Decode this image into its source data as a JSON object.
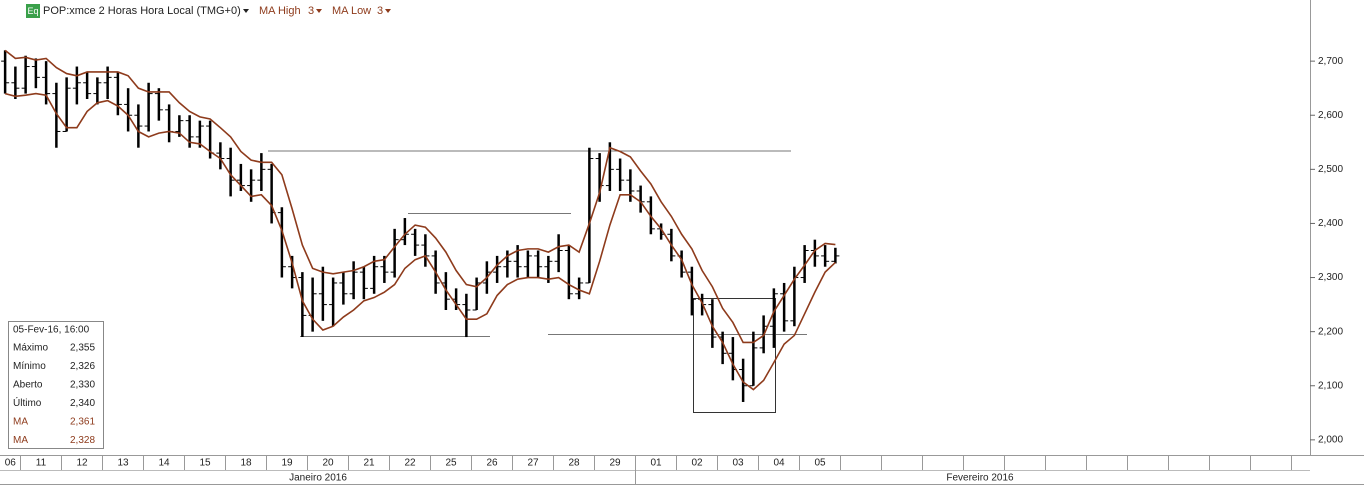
{
  "chart_data": {
    "type": "ohlc",
    "title": "POP:xmce 2 Horas Hora Local (TMG+0)",
    "icon_label": "Eq",
    "ylim": [
      1972,
      2813
    ],
    "yticks": [
      {
        "value": 2000,
        "label": "2,000"
      },
      {
        "value": 2100,
        "label": "2,100"
      },
      {
        "value": 2200,
        "label": "2,200"
      },
      {
        "value": 2300,
        "label": "2,300"
      },
      {
        "value": 2400,
        "label": "2,400"
      },
      {
        "value": 2500,
        "label": "2,500"
      },
      {
        "value": 2600,
        "label": "2,600"
      },
      {
        "value": 2700,
        "label": "2,700"
      }
    ],
    "categories": [
      "06",
      null,
      "11",
      null,
      null,
      null,
      "12",
      null,
      null,
      null,
      "13",
      null,
      null,
      null,
      "14",
      null,
      null,
      null,
      "15",
      null,
      null,
      null,
      "18",
      null,
      null,
      null,
      "19",
      null,
      null,
      null,
      "20",
      null,
      null,
      null,
      "21",
      null,
      null,
      null,
      "22",
      null,
      null,
      null,
      "25",
      null,
      null,
      null,
      "26",
      null,
      null,
      null,
      "27",
      null,
      null,
      null,
      "28",
      null,
      null,
      null,
      "29",
      null,
      null,
      null,
      "01",
      null,
      null,
      null,
      "02",
      null,
      null,
      null,
      "03",
      null,
      null,
      null,
      "04",
      null,
      null,
      null,
      "05",
      null,
      null,
      null
    ],
    "months": [
      "Janeiro 2016",
      "Fevereiro 2016"
    ],
    "bar_color": "#000000",
    "open": [
      2700,
      2660,
      2650,
      2690,
      2670,
      2640,
      2570,
      2650,
      2660,
      2640,
      2660,
      2670,
      2620,
      2600,
      2580,
      2640,
      2610,
      2570,
      2590,
      2560,
      2580,
      2530,
      2520,
      2480,
      2470,
      2480,
      2500,
      2420,
      2320,
      2300,
      2230,
      2270,
      2250,
      2290,
      2270,
      2310,
      2280,
      2320,
      2310,
      2370,
      2380,
      2360,
      2340,
      2290,
      2260,
      2250,
      2240,
      2290,
      2310,
      2320,
      2330,
      2320,
      2340,
      2320,
      2330,
      2350,
      2270,
      2290,
      2520,
      2470,
      2500,
      2480,
      2460,
      2440,
      2390,
      2380,
      2340,
      2310,
      2260,
      2250,
      2190,
      2160,
      2130,
      2100,
      2170,
      2210,
      2270,
      2220,
      2300,
      2350,
      2340,
      2330
    ],
    "high": [
      2720,
      2690,
      2710,
      2705,
      2700,
      2660,
      2670,
      2690,
      2680,
      2670,
      2690,
      2680,
      2650,
      2620,
      2660,
      2650,
      2620,
      2600,
      2600,
      2590,
      2590,
      2550,
      2540,
      2510,
      2500,
      2530,
      2510,
      2430,
      2340,
      2310,
      2300,
      2320,
      2300,
      2310,
      2330,
      2320,
      2340,
      2340,
      2390,
      2410,
      2390,
      2380,
      2350,
      2310,
      2280,
      2270,
      2300,
      2330,
      2340,
      2350,
      2360,
      2350,
      2350,
      2340,
      2380,
      2360,
      2300,
      2540,
      2530,
      2550,
      2520,
      2500,
      2470,
      2450,
      2400,
      2390,
      2350,
      2320,
      2270,
      2260,
      2200,
      2190,
      2150,
      2200,
      2230,
      2280,
      2290,
      2320,
      2360,
      2370,
      2360,
      2355
    ],
    "low": [
      2640,
      2630,
      2640,
      2650,
      2620,
      2540,
      2570,
      2620,
      2630,
      2620,
      2630,
      2600,
      2570,
      2540,
      2570,
      2590,
      2550,
      2560,
      2540,
      2540,
      2520,
      2500,
      2450,
      2460,
      2440,
      2460,
      2400,
      2300,
      2280,
      2190,
      2200,
      2220,
      2210,
      2250,
      2260,
      2260,
      2270,
      2290,
      2300,
      2360,
      2340,
      2320,
      2270,
      2240,
      2240,
      2190,
      2240,
      2270,
      2290,
      2300,
      2300,
      2300,
      2300,
      2290,
      2310,
      2260,
      2260,
      2290,
      2440,
      2460,
      2460,
      2440,
      2420,
      2380,
      2370,
      2330,
      2300,
      2230,
      2230,
      2170,
      2140,
      2110,
      2070,
      2100,
      2160,
      2170,
      2200,
      2210,
      2290,
      2320,
      2320,
      2326
    ],
    "close": [
      2660,
      2650,
      2690,
      2670,
      2640,
      2570,
      2650,
      2660,
      2640,
      2660,
      2670,
      2620,
      2600,
      2580,
      2640,
      2610,
      2570,
      2590,
      2560,
      2580,
      2530,
      2520,
      2480,
      2470,
      2480,
      2500,
      2420,
      2320,
      2300,
      2230,
      2270,
      2250,
      2290,
      2270,
      2310,
      2280,
      2320,
      2310,
      2370,
      2380,
      2360,
      2340,
      2290,
      2260,
      2250,
      2240,
      2290,
      2310,
      2320,
      2330,
      2320,
      2340,
      2320,
      2330,
      2350,
      2270,
      2290,
      2520,
      2470,
      2500,
      2480,
      2460,
      2440,
      2390,
      2380,
      2340,
      2310,
      2260,
      2250,
      2190,
      2160,
      2130,
      2100,
      2170,
      2210,
      2270,
      2220,
      2300,
      2350,
      2340,
      2330,
      2340
    ],
    "series": [
      {
        "name": "MA High",
        "period": 3,
        "color": "#8e3b1c",
        "values": [
          2720,
          2705,
          2707,
          2702,
          2705,
          2688,
          2677,
          2673,
          2680,
          2680,
          2680,
          2680,
          2673,
          2650,
          2643,
          2643,
          2643,
          2623,
          2607,
          2597,
          2593,
          2577,
          2560,
          2533,
          2517,
          2513,
          2513,
          2490,
          2427,
          2360,
          2317,
          2310,
          2307,
          2310,
          2313,
          2320,
          2330,
          2333,
          2357,
          2380,
          2397,
          2393,
          2373,
          2347,
          2313,
          2287,
          2283,
          2300,
          2323,
          2340,
          2350,
          2353,
          2353,
          2347,
          2357,
          2360,
          2347,
          2400,
          2457,
          2540,
          2533,
          2523,
          2497,
          2473,
          2440,
          2413,
          2380,
          2353,
          2313,
          2283,
          2243,
          2217,
          2180,
          2180,
          2193,
          2237,
          2267,
          2297,
          2323,
          2350,
          2363,
          2361
        ]
      },
      {
        "name": "MA Low",
        "period": 3,
        "color": "#8e3b1c",
        "values": [
          2640,
          2635,
          2637,
          2640,
          2637,
          2603,
          2577,
          2577,
          2607,
          2623,
          2627,
          2617,
          2600,
          2570,
          2560,
          2567,
          2570,
          2567,
          2550,
          2547,
          2533,
          2520,
          2490,
          2470,
          2450,
          2453,
          2433,
          2387,
          2327,
          2257,
          2223,
          2203,
          2210,
          2227,
          2240,
          2257,
          2263,
          2273,
          2287,
          2317,
          2333,
          2340,
          2310,
          2277,
          2250,
          2223,
          2223,
          2233,
          2267,
          2287,
          2297,
          2300,
          2300,
          2297,
          2300,
          2287,
          2277,
          2270,
          2330,
          2397,
          2453,
          2453,
          2440,
          2413,
          2390,
          2360,
          2333,
          2287,
          2253,
          2210,
          2180,
          2140,
          2107,
          2093,
          2110,
          2143,
          2177,
          2193,
          2233,
          2273,
          2310,
          2328
        ]
      }
    ],
    "info_panel": {
      "date": "05-Fev-16, 16:00",
      "rows": [
        {
          "label": "Máximo",
          "value": "2,355"
        },
        {
          "label": "Mínimo",
          "value": "2,326"
        },
        {
          "label": "Aberto",
          "value": "2,330"
        },
        {
          "label": "Último",
          "value": "2,340"
        },
        {
          "label": "MA",
          "value": "2,361"
        },
        {
          "label": "MA",
          "value": "2,328"
        }
      ]
    }
  }
}
